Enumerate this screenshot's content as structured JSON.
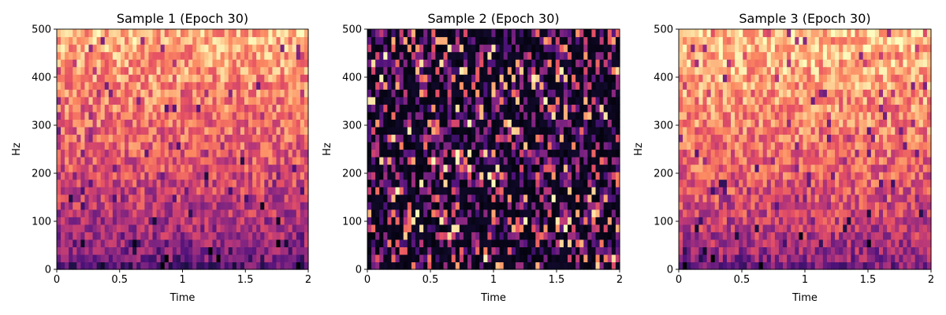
{
  "chart_data": [
    {
      "type": "heatmap",
      "title": "Sample 1 (Epoch 30)",
      "xlabel": "Time",
      "ylabel": "Hz",
      "xlim": [
        0,
        2
      ],
      "ylim": [
        0,
        500
      ],
      "xticks": [
        0,
        0.5,
        1,
        1.5,
        2
      ],
      "xtick_labels": [
        "0",
        "0.5",
        "1",
        "1.5",
        "2"
      ],
      "yticks": [
        0,
        100,
        200,
        300,
        400,
        500
      ],
      "ytick_labels": [
        "0",
        "100",
        "200",
        "300",
        "400",
        "500"
      ],
      "colormap": "magma",
      "grid": false,
      "time_bins": 63,
      "freq_bins": 32,
      "intensity_profile": "bright (0.6–0.95) above 200 Hz, dark (0.15–0.4) below 100 Hz",
      "seed": 11
    },
    {
      "type": "heatmap",
      "title": "Sample 2 (Epoch 30)",
      "xlabel": "Time",
      "ylabel": "Hz",
      "xlim": [
        0,
        2
      ],
      "ylim": [
        0,
        500
      ],
      "xticks": [
        0,
        0.5,
        1,
        1.5,
        2
      ],
      "xtick_labels": [
        "0",
        "0.5",
        "1",
        "1.5",
        "2"
      ],
      "yticks": [
        0,
        100,
        200,
        300,
        400,
        500
      ],
      "ytick_labels": [
        "0",
        "100",
        "200",
        "300",
        "400",
        "500"
      ],
      "colormap": "magma",
      "grid": false,
      "time_bins": 63,
      "freq_bins": 32,
      "intensity_profile": "mostly near-black with scattered purple/orange/yellow cells at all frequencies",
      "seed": 23
    },
    {
      "type": "heatmap",
      "title": "Sample 3 (Epoch 30)",
      "xlabel": "Time",
      "ylabel": "Hz",
      "xlim": [
        0,
        2
      ],
      "ylim": [
        0,
        500
      ],
      "xticks": [
        0,
        0.5,
        1,
        1.5,
        2
      ],
      "xtick_labels": [
        "0",
        "0.5",
        "1",
        "1.5",
        "2"
      ],
      "yticks": [
        0,
        100,
        200,
        300,
        400,
        500
      ],
      "ytick_labels": [
        "0",
        "100",
        "200",
        "300",
        "400",
        "500"
      ],
      "colormap": "magma",
      "grid": false,
      "time_bins": 63,
      "freq_bins": 32,
      "intensity_profile": "bright (0.65–0.95) above 200 Hz, darker (0.25–0.5) below 100 Hz",
      "seed": 37
    }
  ]
}
